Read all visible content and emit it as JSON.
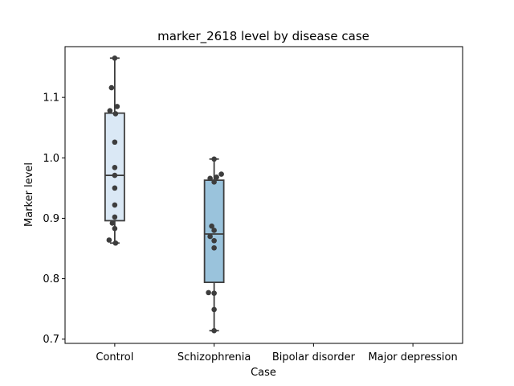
{
  "chart_data": {
    "type": "box",
    "title": "marker_2618 level by disease case",
    "xlabel": "Case",
    "ylabel": "Marker level",
    "categories": [
      "Control",
      "Schizophrenia",
      "Bipolar disorder",
      "Major depression"
    ],
    "ylim": [
      0.693,
      1.184
    ],
    "yticks": [
      0.7,
      0.8,
      0.9,
      1.0,
      1.1
    ],
    "ytick_labels": [
      "0.7",
      "0.8",
      "0.9",
      "1.0",
      "1.1"
    ],
    "box_colors": [
      "#dae8f5",
      "#9ac3dc"
    ],
    "point_color": "#3d3d3d",
    "line_color": "#3d3d3d",
    "boxes": [
      {
        "category": "Control",
        "min": 0.859,
        "q1": 0.896,
        "median": 0.971,
        "q3": 1.074,
        "max": 1.165
      },
      {
        "category": "Schizophrenia",
        "min": 0.714,
        "q1": 0.794,
        "median": 0.874,
        "q3": 0.963,
        "max": 0.998
      }
    ],
    "points": [
      {
        "category": "Control",
        "values": [
          1.165,
          1.116,
          1.085,
          1.078,
          1.073,
          1.026,
          0.984,
          0.971,
          0.95,
          0.922,
          0.902,
          0.892,
          0.883,
          0.864,
          0.859
        ]
      },
      {
        "category": "Schizophrenia",
        "values": [
          0.998,
          0.973,
          0.968,
          0.966,
          0.96,
          0.887,
          0.88,
          0.87,
          0.863,
          0.851,
          0.777,
          0.776,
          0.749,
          0.714
        ]
      }
    ]
  }
}
